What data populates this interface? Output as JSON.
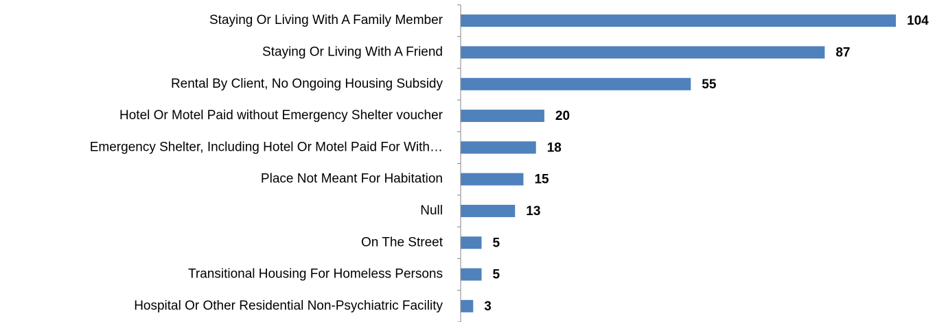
{
  "chart_data": {
    "type": "barh",
    "categories": [
      "Staying Or Living With A Family Member",
      "Staying Or Living With A Friend",
      "Rental By Client, No Ongoing Housing Subsidy",
      "Hotel Or Motel Paid without Emergency Shelter voucher",
      "Emergency Shelter, Including Hotel Or Motel Paid For With…",
      "Place Not Meant For Habitation",
      "Null",
      "On The Street",
      "Transitional Housing For Homeless Persons",
      "Hospital Or Other Residential Non-Psychiatric Facility"
    ],
    "values": [
      104,
      87,
      55,
      20,
      18,
      15,
      13,
      5,
      5,
      3
    ],
    "color": "#4f81bd"
  }
}
